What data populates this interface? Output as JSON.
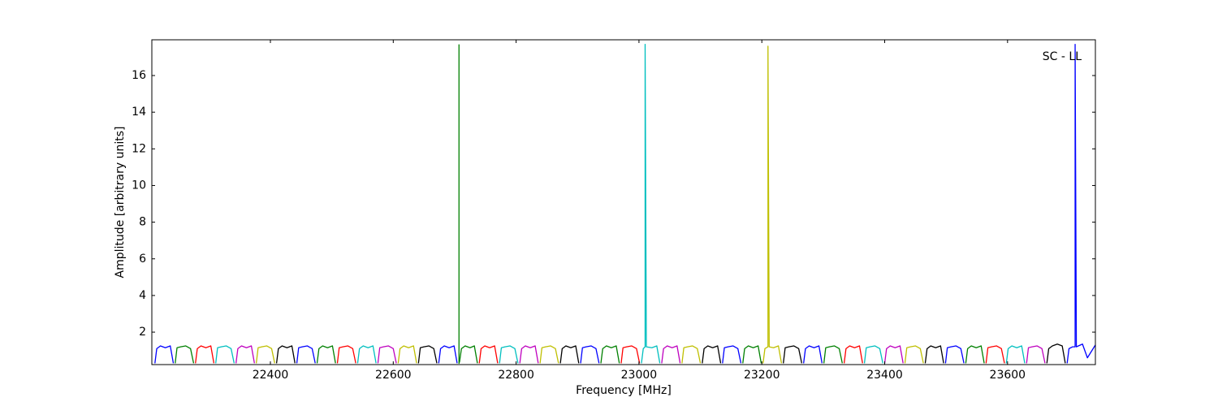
{
  "chart_data": {
    "type": "line",
    "annotation": "SC - LL",
    "x_label": "Frequency [MHz]",
    "y_label": "Amplitude [arbitrary units]",
    "xlim": [
      22207,
      23743
    ],
    "ylim": [
      0.23,
      17.95
    ],
    "xticks": [
      22400,
      22600,
      22800,
      23000,
      23200,
      23400,
      23600
    ],
    "yticks": [
      2,
      4,
      6,
      8,
      10,
      12,
      14,
      16
    ],
    "series": [
      {
        "color": "#0000ff",
        "x": [
          22212,
          22215,
          22221,
          22229,
          22237,
          22242
        ],
        "values": [
          0.3,
          1.1,
          1.25,
          1.15,
          1.25,
          0.3
        ]
      },
      {
        "color": "#008000",
        "x": [
          22245,
          22248,
          22254,
          22262,
          22270,
          22275
        ],
        "values": [
          0.3,
          1.15,
          1.2,
          1.25,
          1.1,
          0.3
        ]
      },
      {
        "color": "#ff0000",
        "x": [
          22278,
          22281,
          22287,
          22295,
          22303,
          22308
        ],
        "values": [
          0.3,
          1.1,
          1.25,
          1.15,
          1.25,
          0.3
        ]
      },
      {
        "color": "#00bfbf",
        "x": [
          22311,
          22314,
          22320,
          22328,
          22336,
          22341
        ],
        "values": [
          0.3,
          1.15,
          1.2,
          1.25,
          1.1,
          0.3
        ]
      },
      {
        "color": "#bf00bf",
        "x": [
          22344,
          22347,
          22353,
          22361,
          22369,
          22374
        ],
        "values": [
          0.3,
          1.1,
          1.25,
          1.15,
          1.25,
          0.3
        ]
      },
      {
        "color": "#bfbf00",
        "x": [
          22377,
          22380,
          22386,
          22394,
          22402,
          22407
        ],
        "values": [
          0.3,
          1.15,
          1.2,
          1.25,
          1.1,
          0.3
        ]
      },
      {
        "color": "#000000",
        "x": [
          22410,
          22413,
          22419,
          22427,
          22435,
          22440
        ],
        "values": [
          0.3,
          1.1,
          1.25,
          1.15,
          1.25,
          0.3
        ]
      },
      {
        "color": "#0000ff",
        "x": [
          22443,
          22446,
          22452,
          22460,
          22468,
          22473
        ],
        "values": [
          0.3,
          1.15,
          1.2,
          1.25,
          1.1,
          0.3
        ]
      },
      {
        "color": "#008000",
        "x": [
          22476,
          22479,
          22485,
          22493,
          22501,
          22506
        ],
        "values": [
          0.3,
          1.1,
          1.25,
          1.15,
          1.25,
          0.3
        ]
      },
      {
        "color": "#ff0000",
        "x": [
          22509,
          22512,
          22518,
          22526,
          22534,
          22539
        ],
        "values": [
          0.3,
          1.15,
          1.2,
          1.25,
          1.1,
          0.3
        ]
      },
      {
        "color": "#00bfbf",
        "x": [
          22542,
          22545,
          22551,
          22559,
          22567,
          22572
        ],
        "values": [
          0.3,
          1.1,
          1.25,
          1.15,
          1.25,
          0.3
        ]
      },
      {
        "color": "#bf00bf",
        "x": [
          22575,
          22578,
          22584,
          22592,
          22600,
          22605
        ],
        "values": [
          0.3,
          1.15,
          1.2,
          1.25,
          1.1,
          0.3
        ]
      },
      {
        "color": "#bfbf00",
        "x": [
          22608,
          22611,
          22617,
          22625,
          22633,
          22638
        ],
        "values": [
          0.3,
          1.1,
          1.25,
          1.15,
          1.25,
          0.3
        ]
      },
      {
        "color": "#000000",
        "x": [
          22641,
          22644,
          22650,
          22658,
          22666,
          22671
        ],
        "values": [
          0.3,
          1.15,
          1.2,
          1.25,
          1.1,
          0.3
        ]
      },
      {
        "color": "#0000ff",
        "x": [
          22674,
          22677,
          22683,
          22691,
          22699,
          22704
        ],
        "values": [
          0.3,
          1.1,
          1.25,
          1.15,
          1.25,
          0.3
        ]
      },
      {
        "color": "#008000",
        "x": [
          22707,
          22707,
          22708,
          22711,
          22717,
          22725,
          22732,
          22737
        ],
        "values": [
          17.7,
          0.3,
          0.4,
          1.1,
          1.25,
          1.15,
          1.25,
          0.3
        ]
      },
      {
        "color": "#ff0000",
        "x": [
          22740,
          22743,
          22749,
          22757,
          22765,
          22770
        ],
        "values": [
          0.3,
          1.1,
          1.25,
          1.15,
          1.25,
          0.3
        ]
      },
      {
        "color": "#00bfbf",
        "x": [
          22773,
          22776,
          22782,
          22790,
          22798,
          22803
        ],
        "values": [
          0.3,
          1.15,
          1.2,
          1.25,
          1.1,
          0.3
        ]
      },
      {
        "color": "#bf00bf",
        "x": [
          22806,
          22809,
          22815,
          22823,
          22831,
          22836
        ],
        "values": [
          0.3,
          1.1,
          1.25,
          1.15,
          1.25,
          0.3
        ]
      },
      {
        "color": "#bfbf00",
        "x": [
          22839,
          22842,
          22848,
          22856,
          22864,
          22869
        ],
        "values": [
          0.3,
          1.15,
          1.2,
          1.25,
          1.1,
          0.3
        ]
      },
      {
        "color": "#000000",
        "x": [
          22872,
          22875,
          22881,
          22889,
          22897,
          22902
        ],
        "values": [
          0.3,
          1.1,
          1.25,
          1.15,
          1.25,
          0.3
        ]
      },
      {
        "color": "#0000ff",
        "x": [
          22905,
          22908,
          22914,
          22922,
          22930,
          22935
        ],
        "values": [
          0.3,
          1.15,
          1.2,
          1.25,
          1.1,
          0.3
        ]
      },
      {
        "color": "#008000",
        "x": [
          22938,
          22941,
          22947,
          22955,
          22963,
          22968
        ],
        "values": [
          0.3,
          1.1,
          1.25,
          1.15,
          1.25,
          0.3
        ]
      },
      {
        "color": "#ff0000",
        "x": [
          22971,
          22974,
          22980,
          22988,
          22996,
          23001
        ],
        "values": [
          0.3,
          1.15,
          1.2,
          1.25,
          1.1,
          0.3
        ]
      },
      {
        "color": "#00bfbf",
        "x": [
          23004,
          23007,
          23010,
          23010,
          23012,
          23021,
          23029,
          23034
        ],
        "values": [
          0.3,
          1.1,
          1.2,
          17.7,
          1.2,
          1.15,
          1.25,
          0.3
        ]
      },
      {
        "color": "#bf00bf",
        "x": [
          23037,
          23040,
          23046,
          23054,
          23062,
          23067
        ],
        "values": [
          0.3,
          1.1,
          1.25,
          1.15,
          1.25,
          0.3
        ]
      },
      {
        "color": "#bfbf00",
        "x": [
          23070,
          23073,
          23079,
          23087,
          23095,
          23100
        ],
        "values": [
          0.3,
          1.15,
          1.2,
          1.25,
          1.1,
          0.3
        ]
      },
      {
        "color": "#000000",
        "x": [
          23103,
          23106,
          23112,
          23120,
          23128,
          23133
        ],
        "values": [
          0.3,
          1.1,
          1.25,
          1.15,
          1.25,
          0.3
        ]
      },
      {
        "color": "#0000ff",
        "x": [
          23136,
          23139,
          23145,
          23153,
          23161,
          23166
        ],
        "values": [
          0.3,
          1.15,
          1.2,
          1.25,
          1.1,
          0.3
        ]
      },
      {
        "color": "#008000",
        "x": [
          23169,
          23172,
          23178,
          23186,
          23194,
          23199
        ],
        "values": [
          0.3,
          1.1,
          1.25,
          1.15,
          1.25,
          0.3
        ]
      },
      {
        "color": "#bfbf00",
        "x": [
          23202,
          23205,
          23210,
          23210,
          23212,
          23219,
          23227,
          23232
        ],
        "values": [
          0.3,
          1.1,
          1.2,
          17.6,
          1.2,
          1.15,
          1.25,
          0.3
        ]
      },
      {
        "color": "#000000",
        "x": [
          23235,
          23238,
          23244,
          23252,
          23260,
          23265
        ],
        "values": [
          0.3,
          1.15,
          1.2,
          1.25,
          1.1,
          0.3
        ]
      },
      {
        "color": "#0000ff",
        "x": [
          23268,
          23271,
          23277,
          23285,
          23293,
          23298
        ],
        "values": [
          0.3,
          1.1,
          1.25,
          1.15,
          1.25,
          0.3
        ]
      },
      {
        "color": "#008000",
        "x": [
          23301,
          23304,
          23310,
          23318,
          23326,
          23331
        ],
        "values": [
          0.3,
          1.15,
          1.2,
          1.25,
          1.1,
          0.3
        ]
      },
      {
        "color": "#ff0000",
        "x": [
          23334,
          23337,
          23343,
          23351,
          23359,
          23364
        ],
        "values": [
          0.3,
          1.1,
          1.25,
          1.15,
          1.25,
          0.3
        ]
      },
      {
        "color": "#00bfbf",
        "x": [
          23367,
          23370,
          23376,
          23384,
          23392,
          23397
        ],
        "values": [
          0.3,
          1.15,
          1.2,
          1.25,
          1.1,
          0.3
        ]
      },
      {
        "color": "#bf00bf",
        "x": [
          23400,
          23403,
          23409,
          23417,
          23425,
          23430
        ],
        "values": [
          0.3,
          1.1,
          1.25,
          1.15,
          1.25,
          0.3
        ]
      },
      {
        "color": "#bfbf00",
        "x": [
          23433,
          23436,
          23442,
          23450,
          23458,
          23463
        ],
        "values": [
          0.3,
          1.15,
          1.2,
          1.25,
          1.1,
          0.3
        ]
      },
      {
        "color": "#000000",
        "x": [
          23466,
          23469,
          23475,
          23483,
          23491,
          23496
        ],
        "values": [
          0.3,
          1.1,
          1.25,
          1.15,
          1.25,
          0.3
        ]
      },
      {
        "color": "#0000ff",
        "x": [
          23499,
          23502,
          23508,
          23516,
          23524,
          23529
        ],
        "values": [
          0.3,
          1.15,
          1.2,
          1.25,
          1.1,
          0.3
        ]
      },
      {
        "color": "#008000",
        "x": [
          23532,
          23535,
          23541,
          23549,
          23557,
          23562
        ],
        "values": [
          0.3,
          1.1,
          1.25,
          1.15,
          1.25,
          0.3
        ]
      },
      {
        "color": "#ff0000",
        "x": [
          23565,
          23568,
          23574,
          23582,
          23590,
          23595
        ],
        "values": [
          0.3,
          1.15,
          1.2,
          1.25,
          1.1,
          0.3
        ]
      },
      {
        "color": "#00bfbf",
        "x": [
          23598,
          23601,
          23607,
          23615,
          23623,
          23628
        ],
        "values": [
          0.3,
          1.1,
          1.25,
          1.15,
          1.25,
          0.3
        ]
      },
      {
        "color": "#bf00bf",
        "x": [
          23631,
          23634,
          23640,
          23648,
          23656,
          23661
        ],
        "values": [
          0.3,
          1.15,
          1.2,
          1.25,
          1.1,
          0.3
        ]
      },
      {
        "color": "#000000",
        "x": [
          23664,
          23667,
          23673,
          23681,
          23689,
          23694
        ],
        "values": [
          0.3,
          1.1,
          1.25,
          1.35,
          1.25,
          0.3
        ]
      },
      {
        "color": "#0000ff",
        "x": [
          23697,
          23700,
          23706,
          23710,
          23710,
          23712,
          23722,
          23730,
          23743
        ],
        "values": [
          0.3,
          1.1,
          1.2,
          1.2,
          17.7,
          1.2,
          1.35,
          0.6,
          1.3
        ]
      }
    ]
  }
}
